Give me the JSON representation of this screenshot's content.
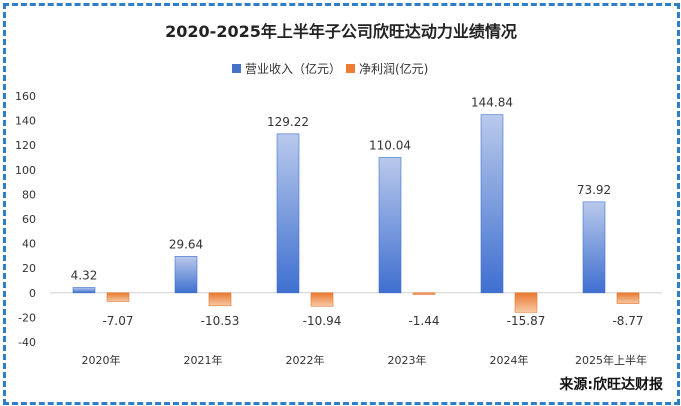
{
  "chart_data": {
    "type": "bar",
    "title": "2020-2025年上半年子公司欣旺达动力业绩情况",
    "categories": [
      "2020年",
      "2021年",
      "2022年",
      "2023年",
      "2024年",
      "2025年上半年"
    ],
    "series": [
      {
        "name": "营业收入（亿元）",
        "values": [
          4.32,
          29.64,
          129.22,
          110.04,
          144.84,
          73.92
        ],
        "color": "#4472c4"
      },
      {
        "name": "净利润(亿元)",
        "values": [
          -7.07,
          -10.53,
          -10.94,
          -1.44,
          -15.87,
          -8.77
        ],
        "color": "#ed7d31"
      }
    ],
    "ylim": [
      -40,
      160
    ],
    "yticks": [
      -40,
      -20,
      0,
      20,
      40,
      60,
      80,
      100,
      120,
      140,
      160
    ],
    "grid": false,
    "legend": "top-center",
    "data_labels": true
  },
  "source_label": "来源:欣旺达财报"
}
